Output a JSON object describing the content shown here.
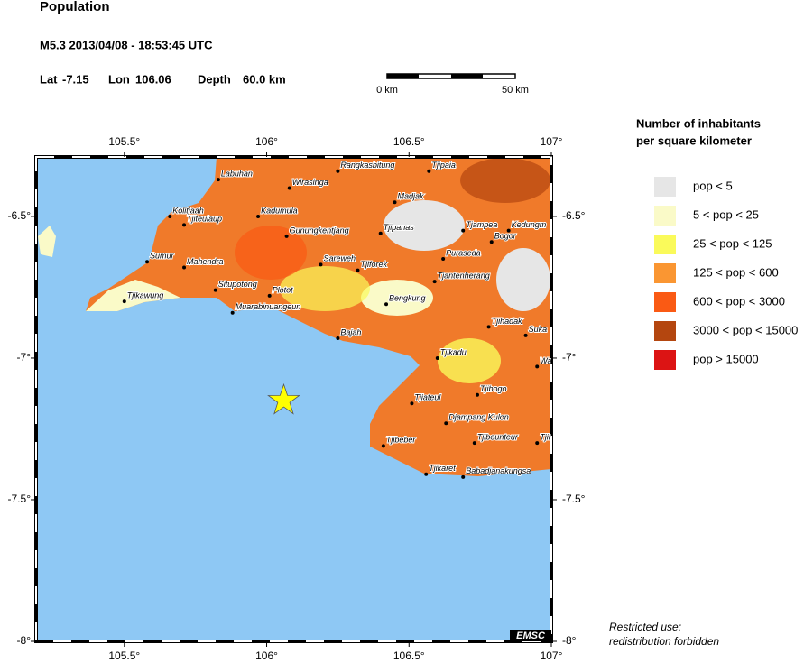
{
  "header": {
    "title": "Population",
    "event": "M5.3  2013/04/08 - 18:53:45 UTC",
    "lat": {
      "label": "Lat",
      "value": -7.15
    },
    "lon": {
      "label": "Lon",
      "value": 106.06
    },
    "depth": {
      "label": "Depth",
      "value": "60.0 km"
    }
  },
  "scale_bar": {
    "start": "0 km",
    "end": "50 km"
  },
  "map": {
    "lon_range": [
      105.19,
      107.0
    ],
    "lat_range": [
      -8.0,
      -6.29
    ],
    "lon_ticks": [
      {
        "value": 105.5,
        "label": "105.5°"
      },
      {
        "value": 106,
        "label": "106°"
      },
      {
        "value": 106.5,
        "label": "106.5°"
      },
      {
        "value": 107,
        "label": "107°"
      }
    ],
    "lat_ticks": [
      {
        "value": -6.5,
        "label": "-6.5°"
      },
      {
        "value": -7,
        "label": "-7°"
      },
      {
        "value": -7.5,
        "label": "-7.5°"
      },
      {
        "value": -8,
        "label": "-8°"
      }
    ],
    "sea_color": "#8ec8f4",
    "epicenter_color": "#ffff00",
    "cities": [
      {
        "name": "Labuhan",
        "lon": 105.83,
        "lat": -6.37
      },
      {
        "name": "Wirasinga",
        "lon": 106.08,
        "lat": -6.4
      },
      {
        "name": "Rangkasbitung",
        "lon": 106.25,
        "lat": -6.34
      },
      {
        "name": "Tjipaia",
        "lon": 106.57,
        "lat": -6.34
      },
      {
        "name": "Madjak",
        "lon": 106.45,
        "lat": -6.45
      },
      {
        "name": "Kolitjaah",
        "lon": 105.66,
        "lat": -6.5
      },
      {
        "name": "Tjiteulaup",
        "lon": 105.71,
        "lat": -6.53
      },
      {
        "name": "Kadumula",
        "lon": 105.97,
        "lat": -6.5
      },
      {
        "name": "Gunungkentjang",
        "lon": 106.07,
        "lat": -6.57
      },
      {
        "name": "Tjipanas",
        "lon": 106.4,
        "lat": -6.56
      },
      {
        "name": "Tjampea",
        "lon": 106.69,
        "lat": -6.55
      },
      {
        "name": "Kedungm",
        "lon": 106.85,
        "lat": -6.55
      },
      {
        "name": "Bogor",
        "lon": 106.79,
        "lat": -6.59
      },
      {
        "name": "Sumur",
        "lon": 105.58,
        "lat": -6.66
      },
      {
        "name": "Mahendra",
        "lon": 105.71,
        "lat": -6.68
      },
      {
        "name": "Sareweh",
        "lon": 106.19,
        "lat": -6.67
      },
      {
        "name": "Puraseda",
        "lon": 106.62,
        "lat": -6.65
      },
      {
        "name": "Tjiforek",
        "lon": 106.32,
        "lat": -6.69
      },
      {
        "name": "Tjantenherang",
        "lon": 106.59,
        "lat": -6.73
      },
      {
        "name": "Situpotong",
        "lon": 105.82,
        "lat": -6.76
      },
      {
        "name": "Plotot",
        "lon": 106.01,
        "lat": -6.78
      },
      {
        "name": "Tjikawung",
        "lon": 105.5,
        "lat": -6.8
      },
      {
        "name": "Muarabinuangeun",
        "lon": 105.88,
        "lat": -6.84
      },
      {
        "name": "Bengkung",
        "lon": 106.42,
        "lat": -6.81
      },
      {
        "name": "Bajah",
        "lon": 106.25,
        "lat": -6.93
      },
      {
        "name": "Tjihadak",
        "lon": 106.78,
        "lat": -6.89
      },
      {
        "name": "Suka",
        "lon": 106.91,
        "lat": -6.92
      },
      {
        "name": "Tjikadu",
        "lon": 106.6,
        "lat": -7.0
      },
      {
        "name": "Wa",
        "lon": 106.95,
        "lat": -7.03
      },
      {
        "name": "Tjiateul",
        "lon": 106.51,
        "lat": -7.16
      },
      {
        "name": "Tjibogo",
        "lon": 106.74,
        "lat": -7.13
      },
      {
        "name": "Djampang Kulon",
        "lon": 106.63,
        "lat": -7.23
      },
      {
        "name": "Tjibeber",
        "lon": 106.41,
        "lat": -7.31
      },
      {
        "name": "Tjibeunteur",
        "lon": 106.73,
        "lat": -7.3
      },
      {
        "name": "Tjir",
        "lon": 106.95,
        "lat": -7.3
      },
      {
        "name": "Tjikaret",
        "lon": 106.56,
        "lat": -7.41
      },
      {
        "name": "Babadjanakungsa",
        "lon": 106.69,
        "lat": -7.42
      }
    ]
  },
  "legend": {
    "title_lines": [
      "Number of inhabitants",
      "per square kilometer"
    ],
    "items": [
      {
        "label": "pop < 5",
        "color": "#e6e6e6"
      },
      {
        "label": "5 < pop < 25",
        "color": "#fafac8"
      },
      {
        "label": "25 < pop < 125",
        "color": "#fafa5a"
      },
      {
        "label": "125 < pop < 600",
        "color": "#fa9632"
      },
      {
        "label": "600 < pop < 3000",
        "color": "#fa5a14"
      },
      {
        "label": "3000 < pop < 15000",
        "color": "#b4460f"
      },
      {
        "label": "pop > 15000",
        "color": "#dc1414"
      }
    ]
  },
  "footer": {
    "lines": [
      "Restricted use:",
      "redistribution forbidden"
    ]
  },
  "badge": "EMSC"
}
